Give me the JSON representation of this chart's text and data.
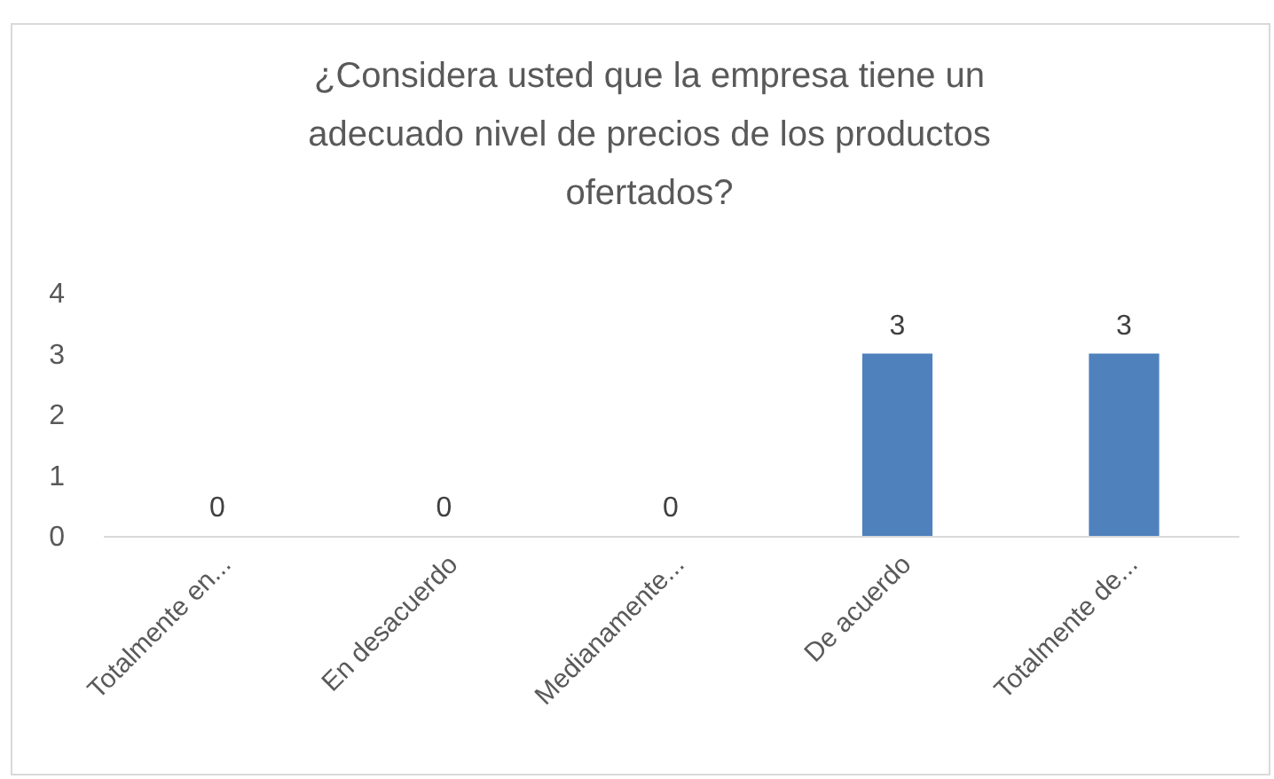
{
  "chart_data": {
    "type": "bar",
    "title": "¿Considera usted que la empresa tiene un\nadecuado nivel de precios de los productos\nofertados?",
    "categories": [
      "Totalmente en...",
      "En desacuerdo",
      "Medianamente...",
      "De acuerdo",
      "Totalmente de..."
    ],
    "values": [
      0,
      0,
      0,
      3,
      3
    ],
    "color": "#4f81bd",
    "ylim": [
      0,
      4
    ],
    "yticks": [
      0,
      1,
      2,
      3,
      4
    ],
    "grid": false,
    "data_labels": true
  }
}
